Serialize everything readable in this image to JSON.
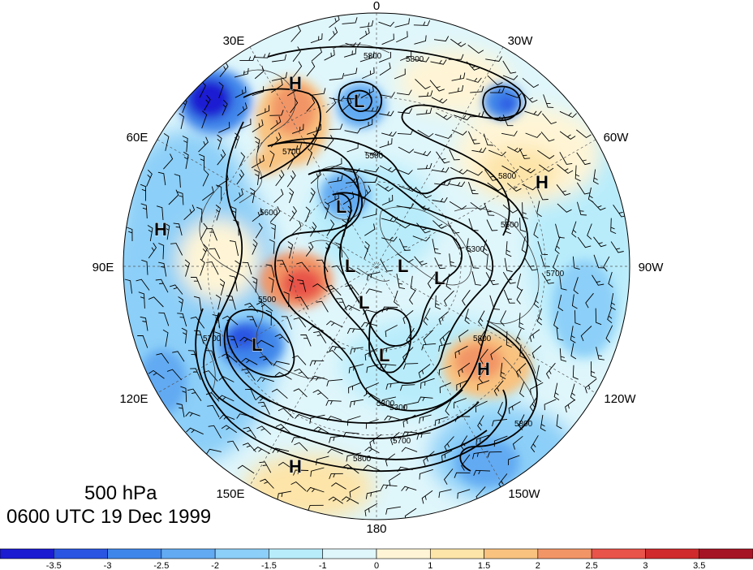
{
  "title": {
    "level": "500 hPa",
    "valid_time": "0600 UTC 19 Dec 1999"
  },
  "longitude_labels": [
    "0",
    "30W",
    "60W",
    "90W",
    "120W",
    "150W",
    "180",
    "150E",
    "120E",
    "90E",
    "60E",
    "30E"
  ],
  "pressure_centers": [
    {
      "label": "H",
      "name": "high-center"
    },
    {
      "label": "L",
      "name": "low-center"
    },
    {
      "label": "L",
      "name": "low-center"
    },
    {
      "label": "H",
      "name": "high-center"
    },
    {
      "label": "H",
      "name": "high-center"
    },
    {
      "label": "L",
      "name": "low-center"
    },
    {
      "label": "L",
      "name": "low-center"
    },
    {
      "label": "L",
      "name": "low-center"
    },
    {
      "label": "L",
      "name": "low-center"
    },
    {
      "label": "L",
      "name": "low-center"
    },
    {
      "label": "L",
      "name": "low-center"
    },
    {
      "label": "L",
      "name": "low-center"
    },
    {
      "label": "H",
      "name": "high-center"
    },
    {
      "label": "H",
      "name": "high-center"
    }
  ],
  "contour_labels": [
    "5800",
    "5800",
    "5700",
    "5500",
    "5300",
    "5800",
    "5700",
    "5300",
    "5700",
    "5800",
    "5500",
    "5300",
    "5700",
    "5500",
    "5800",
    "5600",
    "5800"
  ],
  "colorbar": {
    "ticks": [
      "-3.5",
      "-3",
      "-2.5",
      "-2",
      "-1.5",
      "-1",
      "0",
      "1",
      "1.5",
      "2",
      "2.5",
      "3",
      "3.5"
    ],
    "colors": [
      "#1b1bd2",
      "#2a55e2",
      "#3f86ea",
      "#62aaf2",
      "#8ccff8",
      "#b8ecfb",
      "#dff6fb",
      "#fff5d6",
      "#fde4a8",
      "#f9c27f",
      "#f29566",
      "#e8534a",
      "#d02a2c",
      "#a51425"
    ]
  }
}
